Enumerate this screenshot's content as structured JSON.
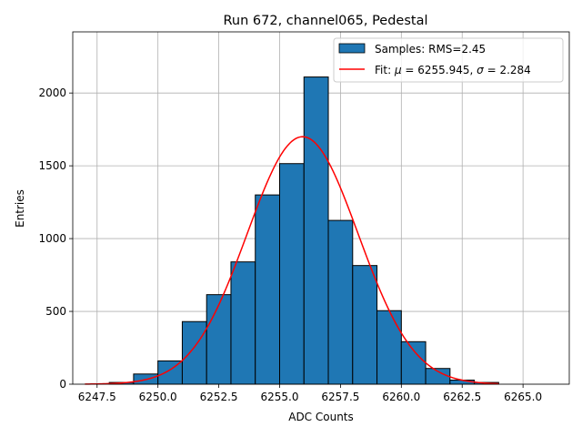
{
  "chart_data": {
    "type": "bar",
    "title": "Run 672, channel065, Pedestal",
    "xlabel": "ADC Counts",
    "ylabel": "Entries",
    "xlim": [
      6246.5,
      6266.9
    ],
    "ylim": [
      0,
      2420
    ],
    "grid": true,
    "legend_position": "top-right",
    "xticks": [
      6247.5,
      6250.0,
      6252.5,
      6255.0,
      6257.5,
      6260.0,
      6262.5,
      6265.0
    ],
    "xtick_labels": [
      "6247.5",
      "6250.0",
      "6252.5",
      "6255.0",
      "6257.5",
      "6260.0",
      "6262.5",
      "6265.0"
    ],
    "yticks": [
      0,
      500,
      1000,
      1500,
      2000
    ],
    "ytick_labels": [
      "0",
      "500",
      "1000",
      "1500",
      "2000"
    ],
    "histogram": {
      "name": "Samples: RMS=2.45",
      "color": "#1f77b4",
      "edge_color": "#000000",
      "bins": [
        {
          "left": 6248,
          "right": 6249,
          "value": 12
        },
        {
          "left": 6249,
          "right": 6250,
          "value": 70
        },
        {
          "left": 6250,
          "right": 6251,
          "value": 160
        },
        {
          "left": 6251,
          "right": 6252,
          "value": 430
        },
        {
          "left": 6252,
          "right": 6253,
          "value": 615
        },
        {
          "left": 6253,
          "right": 6254,
          "value": 840
        },
        {
          "left": 6254,
          "right": 6255,
          "value": 1300
        },
        {
          "left": 6255,
          "right": 6256,
          "value": 1515
        },
        {
          "left": 6256,
          "right": 6257,
          "value": 2110
        },
        {
          "left": 6257,
          "right": 6258,
          "value": 1125
        },
        {
          "left": 6258,
          "right": 6259,
          "value": 815
        },
        {
          "left": 6259,
          "right": 6260,
          "value": 505
        },
        {
          "left": 6260,
          "right": 6261,
          "value": 292
        },
        {
          "left": 6261,
          "right": 6262,
          "value": 108
        },
        {
          "left": 6262,
          "right": 6263,
          "value": 28
        },
        {
          "left": 6263,
          "right": 6264,
          "value": 12
        }
      ]
    },
    "fit": {
      "name": "Fit: μ = 6255.945, σ = 2.284",
      "legend_prefix": "Fit: ",
      "legend_mu_symbol": "μ",
      "legend_mu_text": " = 6255.945, ",
      "legend_sigma_symbol": "σ",
      "legend_sigma_text": " = 2.284",
      "color": "#ff0000",
      "type": "line",
      "mu": 6255.945,
      "sigma": 2.284,
      "amplitude": 1700,
      "x_range": [
        6247.0,
        6264.0
      ]
    }
  }
}
